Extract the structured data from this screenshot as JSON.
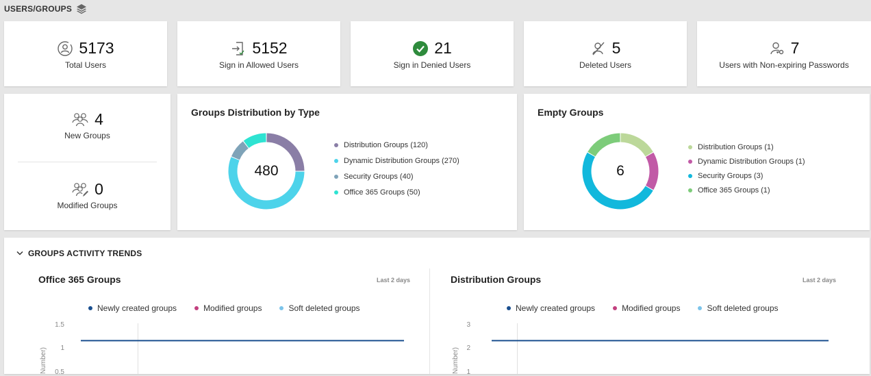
{
  "header": {
    "title": "USERS/GROUPS",
    "icon": "layers-icon"
  },
  "stats": [
    {
      "value": "5173",
      "label": "Total Users",
      "icon": "user-circle-icon"
    },
    {
      "value": "5152",
      "label": "Sign in Allowed Users",
      "icon": "sign-in-icon"
    },
    {
      "value": "21",
      "label": "Sign in Denied Users",
      "icon": "check-circle-icon",
      "color": "#2e8b3c"
    },
    {
      "value": "5",
      "label": "Deleted Users",
      "icon": "user-deleted-icon"
    },
    {
      "value": "7",
      "label": "Users with Non-expiring Passwords",
      "icon": "user-key-icon"
    }
  ],
  "groups": {
    "new": {
      "value": "4",
      "label": "New Groups"
    },
    "modified": {
      "value": "0",
      "label": "Modified Groups"
    }
  },
  "distribution": {
    "title": "Groups Distribution by Type",
    "total": "480",
    "items": [
      {
        "label": "Distribution Groups (120)",
        "value": 120,
        "color": "#8a7ea6"
      },
      {
        "label": "Dynamic Distribution Groups (270)",
        "value": 270,
        "color": "#4dd3ea"
      },
      {
        "label": "Security Groups (40)",
        "value": 40,
        "color": "#7fa3b8"
      },
      {
        "label": "Office 365 Groups (50)",
        "value": 50,
        "color": "#2ee3d2"
      }
    ]
  },
  "empty": {
    "title": "Empty Groups",
    "total": "6",
    "items": [
      {
        "label": "Distribution Groups (1)",
        "value": 1,
        "color": "#bcd89a"
      },
      {
        "label": "Dynamic Distribution Groups (1)",
        "value": 1,
        "color": "#c15aa6"
      },
      {
        "label": "Security Groups (3)",
        "value": 3,
        "color": "#12b8dc"
      },
      {
        "label": "Office 365 Groups (1)",
        "value": 1,
        "color": "#7dcc7a"
      }
    ]
  },
  "trends": {
    "title": "GROUPS ACTIVITY TRENDS",
    "legend": [
      {
        "label": "Newly created groups",
        "color": "#1a4f8f"
      },
      {
        "label": "Modified groups",
        "color": "#c2407f"
      },
      {
        "label": "Soft deleted groups",
        "color": "#7cc4ea"
      }
    ]
  },
  "chart_data": [
    {
      "type": "line",
      "title": "Office 365 Groups",
      "subtitle": "Last 2 days",
      "ylabel": "Number)",
      "yticks": [
        "1.5",
        "1",
        "0.5"
      ],
      "ylim": [
        0,
        1.5
      ],
      "series": [
        {
          "name": "Newly created groups",
          "values": [
            1,
            1
          ]
        }
      ]
    },
    {
      "type": "line",
      "title": "Distribution Groups",
      "subtitle": "Last 2 days",
      "ylabel": "Number)",
      "yticks": [
        "3",
        "2",
        "1"
      ],
      "ylim": [
        0,
        3
      ],
      "series": [
        {
          "name": "Newly created groups",
          "values": [
            2,
            2
          ]
        }
      ]
    }
  ]
}
